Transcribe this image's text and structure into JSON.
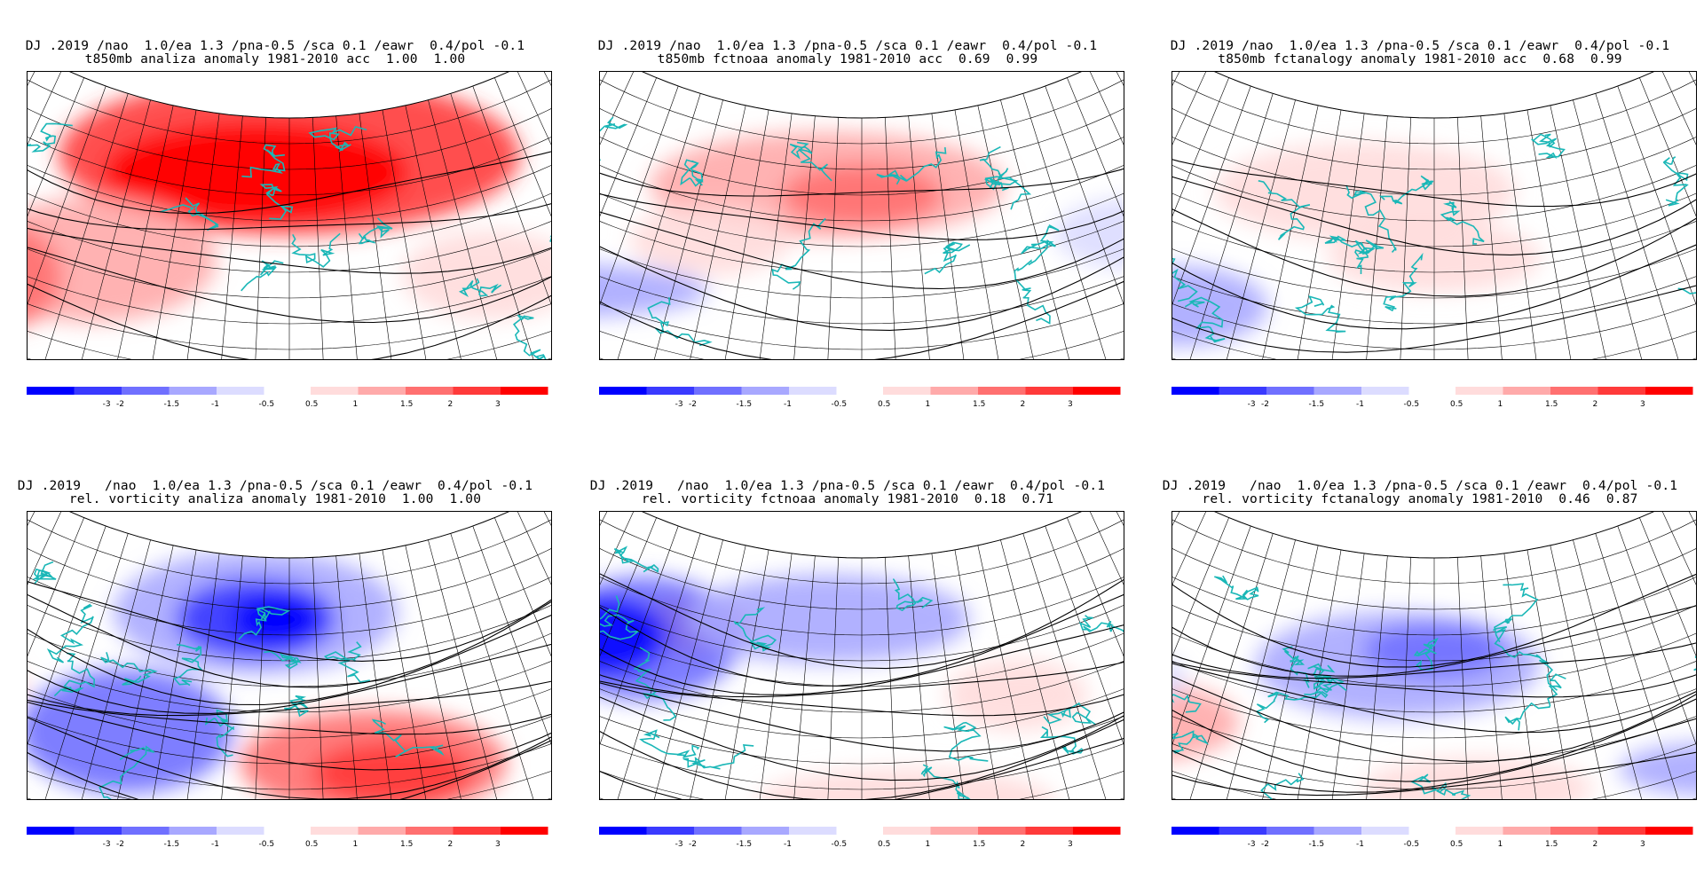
{
  "colors": {
    "coast": "#1ab7b7",
    "contour": "#000000",
    "neg3": "#0000ff",
    "neg2": "#3a3aff",
    "neg15": "#7070ff",
    "neg1": "#a8a8ff",
    "neg05": "#dcdcff",
    "pos05": "#ffdcdc",
    "pos1": "#ffaaaa",
    "pos15": "#ff7070",
    "pos2": "#ff3a3a",
    "pos3": "#ff0000"
  },
  "colorbar_labels": [
    "-3",
    "-2",
    "-1.5",
    "-1",
    "-0.5",
    "0.5",
    "1",
    "1.5",
    "2",
    "3"
  ],
  "panels": [
    {
      "title_line1": "DJ .2019 /nao  1.0/ea 1.3 /pna-0.5 /sca 0.1 /eawr  0.4/pol -0.1",
      "title_line2": "t850mb analiza anomaly 1981-2010 acc  1.00  1.00",
      "field": "t850mb",
      "source": "analiza",
      "acc": [
        1.0,
        1.0
      ]
    },
    {
      "title_line1": "DJ .2019 /nao  1.0/ea 1.3 /pna-0.5 /sca 0.1 /eawr  0.4/pol -0.1",
      "title_line2": "t850mb fctnoaa anomaly 1981-2010 acc  0.69  0.99",
      "field": "t850mb",
      "source": "fctnoaa",
      "acc": [
        0.69,
        0.99
      ]
    },
    {
      "title_line1": "DJ .2019 /nao  1.0/ea 1.3 /pna-0.5 /sca 0.1 /eawr  0.4/pol -0.1",
      "title_line2": "t850mb fctanalogy anomaly 1981-2010 acc  0.68  0.99",
      "field": "t850mb",
      "source": "fctanalogy",
      "acc": [
        0.68,
        0.99
      ]
    },
    {
      "title_line1": "DJ .2019   /nao  1.0/ea 1.3 /pna-0.5 /sca 0.1 /eawr  0.4/pol -0.1",
      "title_line2": "rel. vorticity analiza anomaly 1981-2010  1.00  1.00",
      "field": "rel. vorticity",
      "source": "analiza",
      "acc": [
        1.0,
        1.0
      ]
    },
    {
      "title_line1": "DJ .2019   /nao  1.0/ea 1.3 /pna-0.5 /sca 0.1 /eawr  0.4/pol -0.1",
      "title_line2": "rel. vorticity fctnoaa anomaly 1981-2010  0.18  0.71",
      "field": "rel. vorticity",
      "source": "fctnoaa",
      "acc": [
        0.18,
        0.71
      ]
    },
    {
      "title_line1": "DJ .2019   /nao  1.0/ea 1.3 /pna-0.5 /sca 0.1 /eawr  0.4/pol -0.1",
      "title_line2": "rel. vorticity fctanalogy anomaly 1981-2010  0.46  0.87",
      "field": "rel. vorticity",
      "source": "fctanalogy",
      "acc": [
        0.46,
        0.87
      ]
    }
  ]
}
